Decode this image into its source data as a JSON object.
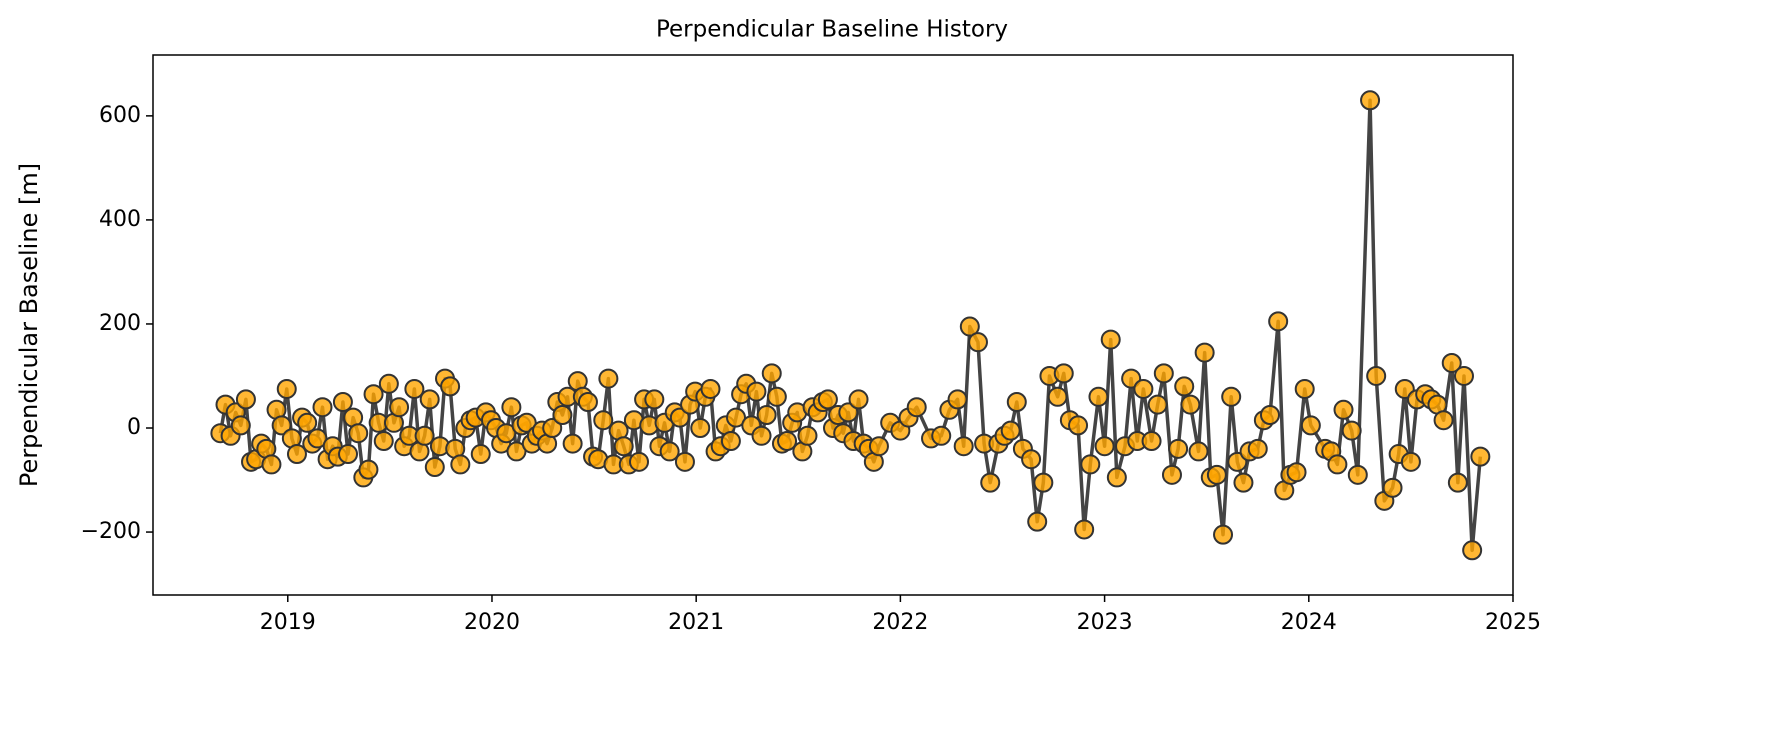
{
  "chart_data": {
    "type": "line",
    "title": "Perpendicular Baseline History",
    "y_label": "Perpendicular Baseline [m]",
    "xlim": [
      2018.34,
      2025
    ],
    "xticks": [
      2019,
      2020,
      2021,
      2022,
      2023,
      2024,
      2025
    ],
    "ylim": [
      -321,
      717
    ],
    "yticks": [
      {
        "value": -200,
        "label": "−200"
      },
      0,
      200,
      400,
      600
    ],
    "line_color": "#444444",
    "marker_color": "#ffa500",
    "marker_edge": "#333333",
    "grid": false,
    "x": [
      2018.67,
      2018.695,
      2018.72,
      2018.745,
      2018.77,
      2018.795,
      2018.82,
      2018.845,
      2018.87,
      2018.895,
      2018.92,
      2018.945,
      2018.97,
      2018.995,
      2019.02,
      2019.045,
      2019.07,
      2019.095,
      2019.12,
      2019.145,
      2019.17,
      2019.195,
      2019.22,
      2019.245,
      2019.27,
      2019.295,
      2019.32,
      2019.345,
      2019.37,
      2019.395,
      2019.42,
      2019.445,
      2019.47,
      2019.495,
      2019.52,
      2019.545,
      2019.57,
      2019.595,
      2019.62,
      2019.645,
      2019.67,
      2019.695,
      2019.72,
      2019.745,
      2019.77,
      2019.795,
      2019.82,
      2019.845,
      2019.87,
      2019.895,
      2019.92,
      2019.945,
      2019.97,
      2019.995,
      2020.02,
      2020.045,
      2020.07,
      2020.095,
      2020.12,
      2020.145,
      2020.17,
      2020.195,
      2020.22,
      2020.245,
      2020.27,
      2020.295,
      2020.32,
      2020.345,
      2020.37,
      2020.395,
      2020.42,
      2020.445,
      2020.47,
      2020.495,
      2020.52,
      2020.545,
      2020.57,
      2020.595,
      2020.62,
      2020.645,
      2020.67,
      2020.695,
      2020.72,
      2020.745,
      2020.77,
      2020.795,
      2020.82,
      2020.845,
      2020.87,
      2020.895,
      2020.92,
      2020.945,
      2020.97,
      2020.995,
      2021.02,
      2021.045,
      2021.07,
      2021.095,
      2021.12,
      2021.145,
      2021.17,
      2021.195,
      2021.22,
      2021.245,
      2021.27,
      2021.295,
      2021.32,
      2021.345,
      2021.37,
      2021.395,
      2021.42,
      2021.445,
      2021.47,
      2021.495,
      2021.52,
      2021.545,
      2021.57,
      2021.595,
      2021.62,
      2021.645,
      2021.67,
      2021.695,
      2021.72,
      2021.745,
      2021.77,
      2021.795,
      2021.82,
      2021.845,
      2021.87,
      2021.895,
      2021.95,
      2022.0,
      2022.04,
      2022.08,
      2022.15,
      2022.2,
      2022.24,
      2022.28,
      2022.31,
      2022.34,
      2022.38,
      2022.41,
      2022.44,
      2022.48,
      2022.51,
      2022.54,
      2022.57,
      2022.6,
      2022.64,
      2022.67,
      2022.7,
      2022.73,
      2022.77,
      2022.8,
      2022.83,
      2022.87,
      2022.9,
      2022.93,
      2022.97,
      2023.0,
      2023.03,
      2023.06,
      2023.1,
      2023.13,
      2023.16,
      2023.19,
      2023.23,
      2023.26,
      2023.29,
      2023.33,
      2023.36,
      2023.39,
      2023.42,
      2023.46,
      2023.49,
      2023.52,
      2023.55,
      2023.58,
      2023.62,
      2023.65,
      2023.68,
      2023.71,
      2023.75,
      2023.78,
      2023.81,
      2023.85,
      2023.88,
      2023.91,
      2023.94,
      2023.98,
      2024.01,
      2024.08,
      2024.11,
      2024.14,
      2024.17,
      2024.21,
      2024.24,
      2024.3,
      2024.33,
      2024.37,
      2024.41,
      2024.44,
      2024.47,
      2024.5,
      2024.53,
      2024.57,
      2024.6,
      2024.63,
      2024.66,
      2024.7,
      2024.73,
      2024.76,
      2024.8,
      2024.84
    ],
    "values": [
      -10,
      45,
      -15,
      30,
      5,
      55,
      -65,
      -60,
      -30,
      -40,
      -70,
      35,
      5,
      75,
      -20,
      -50,
      20,
      10,
      -30,
      -20,
      40,
      -60,
      -35,
      -55,
      50,
      -50,
      20,
      -10,
      -95,
      -80,
      65,
      10,
      -25,
      85,
      10,
      40,
      -35,
      -15,
      75,
      -45,
      -15,
      55,
      -75,
      -35,
      95,
      80,
      -40,
      -70,
      0,
      15,
      20,
      -50,
      30,
      15,
      0,
      -30,
      -10,
      40,
      -45,
      5,
      10,
      -30,
      -15,
      -5,
      -30,
      0,
      50,
      25,
      60,
      -30,
      90,
      60,
      50,
      -55,
      -60,
      15,
      95,
      -70,
      -5,
      -35,
      -70,
      15,
      -65,
      55,
      5,
      55,
      -35,
      10,
      -45,
      30,
      20,
      -65,
      45,
      70,
      0,
      60,
      75,
      -45,
      -35,
      5,
      -25,
      20,
      65,
      85,
      5,
      70,
      -15,
      25,
      105,
      60,
      -30,
      -25,
      10,
      30,
      -45,
      -15,
      40,
      30,
      50,
      55,
      0,
      25,
      -10,
      30,
      -25,
      55,
      -30,
      -40,
      -65,
      -35,
      10,
      -5,
      20,
      40,
      -20,
      -15,
      35,
      55,
      -35,
      195,
      165,
      -30,
      -105,
      -30,
      -15,
      -5,
      50,
      -40,
      -60,
      -180,
      -105,
      100,
      60,
      105,
      15,
      5,
      -195,
      -70,
      60,
      -35,
      170,
      -95,
      -35,
      95,
      -25,
      75,
      -25,
      45,
      105,
      -90,
      -40,
      80,
      45,
      -45,
      145,
      -95,
      -90,
      -205,
      60,
      -65,
      -105,
      -45,
      -40,
      15,
      25,
      205,
      -120,
      -90,
      -85,
      75,
      5,
      -40,
      -45,
      -70,
      35,
      -5,
      -90,
      630,
      100,
      -140,
      -115,
      -50,
      75,
      -65,
      55,
      65,
      55,
      45,
      15,
      125,
      -105,
      100,
      -235,
      -55
    ]
  }
}
